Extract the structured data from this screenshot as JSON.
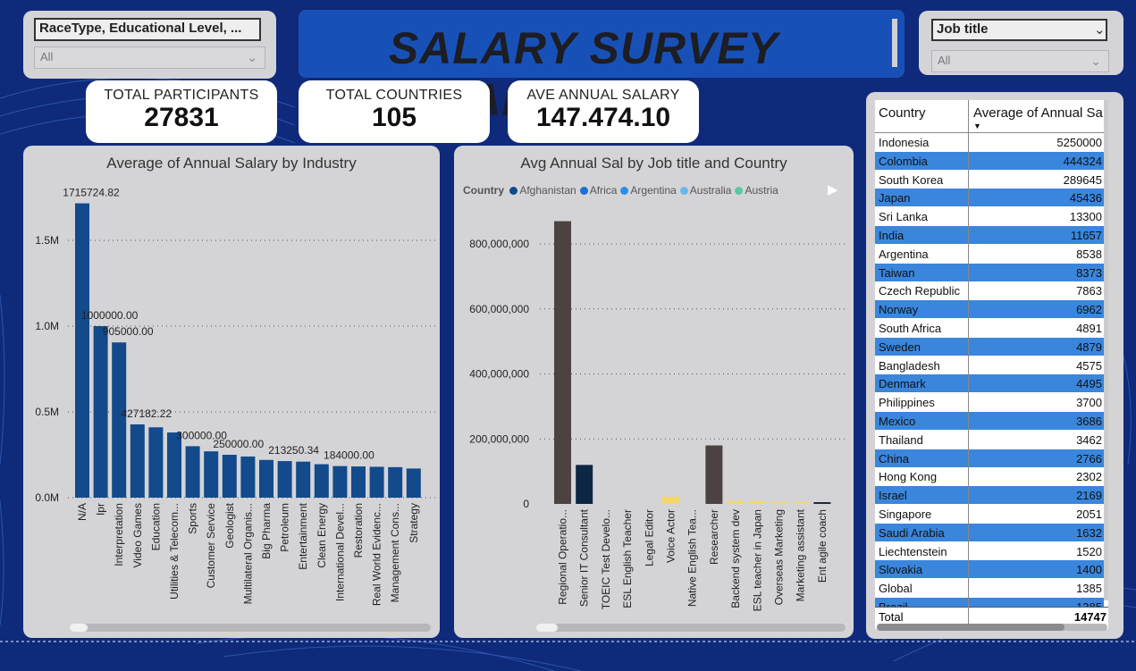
{
  "slicers": {
    "left": {
      "label": "RaceType, Educational Level, ...",
      "value": "All"
    },
    "right": {
      "label": "Job title",
      "value": "All"
    }
  },
  "title": "SALARY SURVEY ANALYSIS",
  "kpis": [
    {
      "label": "TOTAL PARTICIPANTS",
      "value": "27831"
    },
    {
      "label": "TOTAL COUNTRIES",
      "value": "105"
    },
    {
      "label": "AVE ANNUAL SALARY",
      "value": "147.474.10"
    }
  ],
  "industry_chart": {
    "title": "Average of Annual Salary by Industry",
    "y_ticks": [
      "1.5M",
      "1.0M",
      "0.5M",
      "0.0M"
    ],
    "bar_color": "#124a8c"
  },
  "job_chart": {
    "title": "Avg Annual Sal by Job title and Country",
    "legend_title": "Country",
    "legend": [
      {
        "name": "Afghanistan",
        "color": "#0e4a8c"
      },
      {
        "name": "Africa",
        "color": "#1c6fd6"
      },
      {
        "name": "Argentina",
        "color": "#2a8de8"
      },
      {
        "name": "Australia",
        "color": "#6cb6ef"
      },
      {
        "name": "Austria",
        "color": "#58c9a0"
      }
    ],
    "y_ticks": [
      "800,000,000",
      "600,000,000",
      "400,000,000",
      "200,000,000",
      "0"
    ]
  },
  "table": {
    "headers": [
      "Country",
      "Average of Annual Sa"
    ],
    "rows": [
      [
        "Indonesia",
        "5250000"
      ],
      [
        "Colombia",
        "444324"
      ],
      [
        "South Korea",
        "289645"
      ],
      [
        "Japan",
        "45436"
      ],
      [
        "Sri Lanka",
        "13300"
      ],
      [
        "India",
        "11657"
      ],
      [
        "Argentina",
        "8538"
      ],
      [
        "Taiwan",
        "8373"
      ],
      [
        "Czech Republic",
        "7863"
      ],
      [
        "Norway",
        "6962"
      ],
      [
        "South Africa",
        "4891"
      ],
      [
        "Sweden",
        "4879"
      ],
      [
        "Bangladesh",
        "4575"
      ],
      [
        "Denmark",
        "4495"
      ],
      [
        "Philippines",
        "3700"
      ],
      [
        "Mexico",
        "3686"
      ],
      [
        "Thailand",
        "3462"
      ],
      [
        "China",
        "2766"
      ],
      [
        "Hong Kong",
        "2302"
      ],
      [
        "Israel",
        "2169"
      ],
      [
        "Singapore",
        "2051"
      ],
      [
        "Saudi Arabia",
        "1632"
      ],
      [
        "Liechtenstein",
        "1520"
      ],
      [
        "Slovakia",
        "1400"
      ],
      [
        "Global",
        "1385"
      ]
    ],
    "partial_row": [
      "Brazil",
      "1385"
    ],
    "total": [
      "Total",
      "14747"
    ],
    "stripe_color": "#3a86dc"
  },
  "chart_data": [
    {
      "type": "bar",
      "title": "Average of Annual Salary by Industry",
      "categories": [
        "N/A",
        "Ipr",
        "Interpretation",
        "Video Games",
        "Education",
        "Utilities & Telecom...",
        "Sports",
        "Customer Service",
        "Geologist",
        "Multilateral Organis...",
        "Big Pharma",
        "Petroleum",
        "Entertainment",
        "Clean Energy",
        "International Devel...",
        "Restoration",
        "Real World Evidenc...",
        "Management Cons...",
        "Strategy"
      ],
      "values": [
        1715724.82,
        1000000,
        905000,
        427182.22,
        410000,
        380000,
        300000,
        270000,
        250000,
        240000,
        220000,
        213250.34,
        210000,
        195000,
        184000,
        182000,
        180000,
        178000,
        170000
      ],
      "data_labels": {
        "0": "1715724.82",
        "1": "1000000.00",
        "2": "905000.00",
        "3": "427182.22",
        "6": "300000.00",
        "8": "250000.00",
        "11": "213250.34",
        "14": "184000.00"
      },
      "ylim": [
        0,
        1800000
      ]
    },
    {
      "type": "bar",
      "title": "Avg Annual Sal by Job title and Country",
      "categories": [
        "Regional Operatio...",
        "Senior IT Consultant",
        "TOEIC Test Develo...",
        "ESL English Teacher",
        "Legal Editor",
        "Voice Actor",
        "Native English Tea...",
        "Researcher",
        "Backend system dev",
        "ESL teacher in Japan",
        "Overseas Marketing",
        "Marketing assistant",
        "Ent agile coach"
      ],
      "values": [
        870000000,
        120000000,
        0,
        0,
        0,
        22000000,
        0,
        180000000,
        9000000,
        9000000,
        6000000,
        6000000,
        5000000
      ],
      "colors": [
        "#4d4242",
        "#0d2646",
        "#4d4242",
        "#4d4242",
        "#4d4242",
        "#f2d76a",
        "#4d4242",
        "#4d4242",
        "#f2d76a",
        "#f2d76a",
        "#f2d76a",
        "#f2d76a",
        "#1b2a40"
      ],
      "ylim": [
        0,
        900000000
      ]
    }
  ]
}
